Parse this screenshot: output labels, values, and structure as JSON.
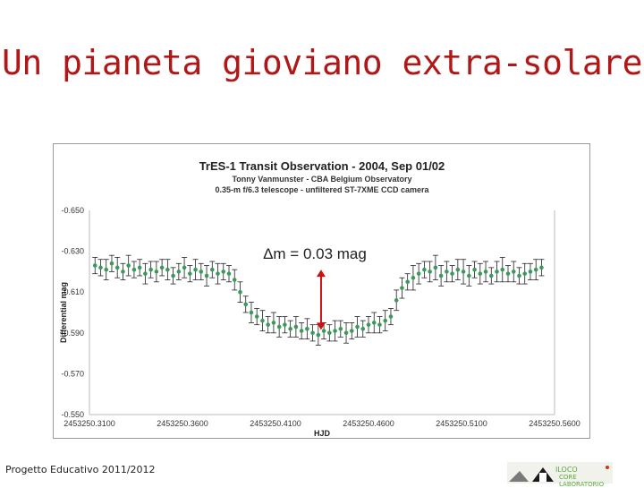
{
  "slide": {
    "title": "Un pianeta gioviano extra-solare",
    "footer": "Progetto Educativo 2011/2012",
    "logo_line1": "ILOCO",
    "logo_line2": "CORE LABORATORIO"
  },
  "colors": {
    "title": "#b01818",
    "points": "#3a9a5a",
    "arrow": "#cc1111"
  },
  "chart_data": {
    "type": "scatter",
    "title": "TrES-1 Transit Observation - 2004, Sep 01/02",
    "subtitle_1": "Tonny Vanmunster - CBA Belgium Observatory",
    "subtitle_2": "0.35-m f/6.3 telescope - unfiltered ST-7XME CCD camera",
    "xlabel": "HJD",
    "ylabel": "Differential mag",
    "xlim": [
      2453250.31,
      2453250.56
    ],
    "ylim": [
      -0.65,
      -0.55
    ],
    "y_inverted": true,
    "xticks": [
      "2453250.3100",
      "2453250.3600",
      "2453250.4100",
      "2453250.4600",
      "2453250.5100",
      "2453250.5600"
    ],
    "yticks": [
      "-0.650",
      "-0.630",
      "-0.610",
      "-0.590",
      "-0.570",
      "-0.550"
    ],
    "annotation": "Δm = 0.03 mag",
    "annotation_arrow": {
      "x": 2453250.4345,
      "y_from": -0.621,
      "y_to": -0.5915
    },
    "grid": false,
    "legend": "none",
    "series": [
      {
        "x": [
          2453250.313,
          2453250.316,
          2453250.319,
          2453250.322,
          2453250.325,
          2453250.328,
          2453250.331,
          2453250.334,
          2453250.337,
          2453250.34,
          2453250.343,
          2453250.346,
          2453250.349,
          2453250.352,
          2453250.355,
          2453250.358,
          2453250.361,
          2453250.364,
          2453250.367,
          2453250.37,
          2453250.373,
          2453250.376,
          2453250.379,
          2453250.382,
          2453250.385,
          2453250.388,
          2453250.391,
          2453250.394,
          2453250.397,
          2453250.4,
          2453250.403,
          2453250.406,
          2453250.409,
          2453250.412,
          2453250.415,
          2453250.418,
          2453250.421,
          2453250.424,
          2453250.427,
          2453250.43,
          2453250.433,
          2453250.436,
          2453250.439,
          2453250.442,
          2453250.445,
          2453250.448,
          2453250.451,
          2453250.454,
          2453250.457,
          2453250.46,
          2453250.463,
          2453250.466,
          2453250.469,
          2453250.472,
          2453250.475,
          2453250.478,
          2453250.481,
          2453250.484,
          2453250.487,
          2453250.49,
          2453250.493,
          2453250.496,
          2453250.499,
          2453250.502,
          2453250.505,
          2453250.508,
          2453250.511,
          2453250.514,
          2453250.517,
          2453250.52,
          2453250.523,
          2453250.526,
          2453250.529,
          2453250.532,
          2453250.535,
          2453250.538,
          2453250.541,
          2453250.544,
          2453250.547,
          2453250.55,
          2453250.553
        ],
        "y": [
          -0.623,
          -0.622,
          -0.621,
          -0.624,
          -0.622,
          -0.62,
          -0.623,
          -0.621,
          -0.622,
          -0.619,
          -0.621,
          -0.62,
          -0.622,
          -0.621,
          -0.618,
          -0.62,
          -0.622,
          -0.619,
          -0.621,
          -0.62,
          -0.618,
          -0.621,
          -0.619,
          -0.62,
          -0.619,
          -0.616,
          -0.61,
          -0.604,
          -0.6,
          -0.598,
          -0.596,
          -0.594,
          -0.595,
          -0.593,
          -0.594,
          -0.592,
          -0.593,
          -0.591,
          -0.592,
          -0.59,
          -0.589,
          -0.591,
          -0.59,
          -0.591,
          -0.592,
          -0.59,
          -0.591,
          -0.593,
          -0.592,
          -0.594,
          -0.595,
          -0.594,
          -0.596,
          -0.598,
          -0.606,
          -0.612,
          -0.615,
          -0.617,
          -0.619,
          -0.621,
          -0.62,
          -0.622,
          -0.618,
          -0.62,
          -0.619,
          -0.621,
          -0.62,
          -0.618,
          -0.621,
          -0.619,
          -0.62,
          -0.618,
          -0.62,
          -0.621,
          -0.619,
          -0.62,
          -0.618,
          -0.619,
          -0.62,
          -0.621,
          -0.622
        ],
        "err": [
          0.004,
          0.004,
          0.005,
          0.004,
          0.005,
          0.004,
          0.005,
          0.004,
          0.004,
          0.005,
          0.004,
          0.005,
          0.004,
          0.005,
          0.004,
          0.004,
          0.005,
          0.004,
          0.005,
          0.004,
          0.005,
          0.004,
          0.005,
          0.004,
          0.004,
          0.005,
          0.005,
          0.004,
          0.005,
          0.004,
          0.005,
          0.004,
          0.005,
          0.005,
          0.004,
          0.004,
          0.005,
          0.004,
          0.005,
          0.004,
          0.005,
          0.004,
          0.004,
          0.005,
          0.004,
          0.005,
          0.004,
          0.005,
          0.004,
          0.004,
          0.005,
          0.004,
          0.005,
          0.004,
          0.005,
          0.005,
          0.004,
          0.006,
          0.005,
          0.004,
          0.005,
          0.006,
          0.005,
          0.005,
          0.004,
          0.005,
          0.006,
          0.005,
          0.004,
          0.005,
          0.005,
          0.004,
          0.005,
          0.006,
          0.004,
          0.005,
          0.004,
          0.005,
          0.004,
          0.005,
          0.004
        ]
      }
    ]
  }
}
